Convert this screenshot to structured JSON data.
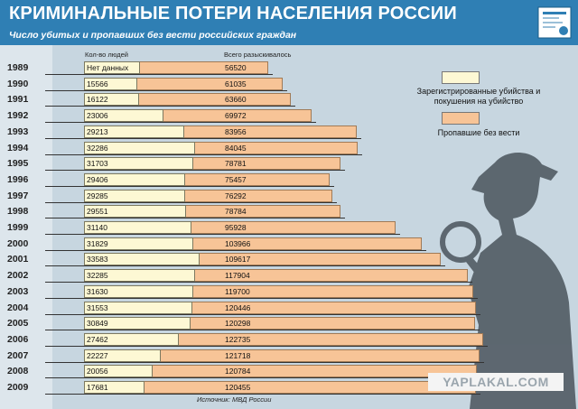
{
  "header": {
    "title": "КРИМИНАЛЬНЫЕ ПОТЕРИ НАСЕЛЕНИЯ РОССИИ",
    "subtitle": "Число убитых и пропавших без вести российских граждан"
  },
  "columns": {
    "people_label": "Кол-во людей",
    "total_label": "Всего разыскивалось"
  },
  "legend": {
    "murders": "Зарегистрированные убийства и покушения на убийство",
    "missing": "Пропавшие без вести"
  },
  "colors": {
    "header": "#2f7fb4",
    "murders": "#fdf8d4",
    "missing": "#f7c497",
    "background": "#c7d6e0"
  },
  "source": "Источник: МВД России",
  "watermark": "YAPLAKAL.COM",
  "icons": [
    "poster-icon",
    "detective-silhouette"
  ],
  "chart_data": {
    "type": "bar",
    "orientation": "horizontal",
    "categories": [
      "1989",
      "1990",
      "1991",
      "1992",
      "1993",
      "1994",
      "1995",
      "1996",
      "1997",
      "1998",
      "1999",
      "2000",
      "2001",
      "2002",
      "2003",
      "2004",
      "2005",
      "2006",
      "2007",
      "2008",
      "2009"
    ],
    "series": [
      {
        "name": "Зарегистрированные убийства и покушения на убийство",
        "values": [
          null,
          15566,
          16122,
          23006,
          29213,
          32286,
          31703,
          29406,
          29285,
          29551,
          31140,
          31829,
          33583,
          32285,
          31630,
          31553,
          30849,
          27462,
          22227,
          20056,
          17681
        ],
        "labels": [
          "Нет данных",
          "15566",
          "16122",
          "23006",
          "29213",
          "32286",
          "31703",
          "29406",
          "29285",
          "29551",
          "31140",
          "31829",
          "33583",
          "32285",
          "31630",
          "31553",
          "30849",
          "27462",
          "22227",
          "20056",
          "17681"
        ]
      },
      {
        "name": "Пропавшие без вести",
        "values": [
          56520,
          61035,
          63660,
          69972,
          83956,
          84045,
          78781,
          75457,
          76292,
          78784,
          95928,
          103966,
          109617,
          117904,
          119700,
          120446,
          120298,
          122735,
          121718,
          120784,
          120455
        ],
        "labels": [
          "56520",
          "61035",
          "63660",
          "69972",
          "83956",
          "84045",
          "78781",
          "75457",
          "76292",
          "78784",
          "95928",
          "103966",
          "109617",
          "117904",
          "119700",
          "120446",
          "120298",
          "122735",
          "121718",
          "120784",
          "120455"
        ]
      }
    ],
    "xlim": [
      0,
      122735
    ],
    "grid": false,
    "legend_position": "right"
  }
}
